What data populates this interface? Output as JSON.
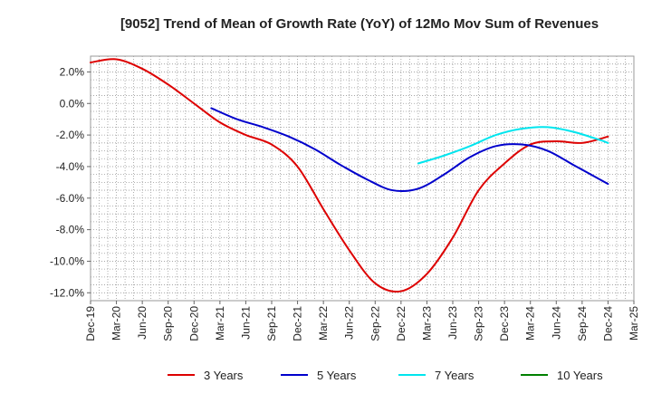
{
  "chart_data": {
    "type": "line",
    "title": "[9052]  Trend of Mean of Growth Rate (YoY) of 12Mo Mov Sum of Revenues",
    "xlabel": "",
    "ylabel": "",
    "ylim": [
      -12.5,
      3.0
    ],
    "y_ticks": [
      2,
      0,
      -2,
      -4,
      -6,
      -8,
      -10,
      -12
    ],
    "y_tick_labels": [
      "2.0%",
      "0.0%",
      "-2.0%",
      "-4.0%",
      "-6.0%",
      "-8.0%",
      "-10.0%",
      "-12.0%"
    ],
    "x_tick_labels": [
      "Dec-19",
      "Mar-20",
      "Jun-20",
      "Sep-20",
      "Dec-20",
      "Mar-21",
      "Jun-21",
      "Sep-21",
      "Dec-21",
      "Mar-22",
      "Jun-22",
      "Sep-22",
      "Dec-22",
      "Mar-23",
      "Jun-23",
      "Sep-23",
      "Dec-23",
      "Mar-24",
      "Jun-24",
      "Sep-24",
      "Dec-24",
      "Mar-25"
    ],
    "x_unit": "months since Dec-19",
    "x_range": [
      0,
      63
    ],
    "grid": true,
    "legend_position": "bottom",
    "series": [
      {
        "name": "3 Years",
        "color": "#dd0000",
        "x": [
          0,
          3,
          6,
          9,
          12,
          15,
          18,
          21,
          24,
          27,
          30,
          33,
          36,
          39,
          42,
          45,
          48,
          51,
          54,
          57,
          60
        ],
        "values": [
          2.6,
          2.8,
          2.2,
          1.2,
          0.0,
          -1.2,
          -2.0,
          -2.6,
          -4.0,
          -6.7,
          -9.3,
          -11.4,
          -11.9,
          -10.8,
          -8.5,
          -5.5,
          -3.8,
          -2.6,
          -2.4,
          -2.5,
          -2.1
        ]
      },
      {
        "name": "5 Years",
        "color": "#0000cc",
        "x": [
          14,
          17,
          20,
          23,
          26,
          29,
          32,
          35,
          38,
          41,
          44,
          47,
          50,
          53,
          56,
          59,
          60
        ],
        "values": [
          -0.3,
          -1.0,
          -1.5,
          -2.1,
          -2.9,
          -3.9,
          -4.8,
          -5.5,
          -5.4,
          -4.5,
          -3.4,
          -2.7,
          -2.6,
          -3.0,
          -3.9,
          -4.8,
          -5.1
        ]
      },
      {
        "name": "7 Years",
        "color": "#00e5ee",
        "x": [
          38,
          41,
          44,
          47,
          50,
          53,
          56,
          59,
          60
        ],
        "values": [
          -3.8,
          -3.3,
          -2.7,
          -2.0,
          -1.6,
          -1.5,
          -1.8,
          -2.3,
          -2.5
        ]
      },
      {
        "name": "10 Years",
        "color": "#008000",
        "x": [],
        "values": []
      }
    ]
  }
}
